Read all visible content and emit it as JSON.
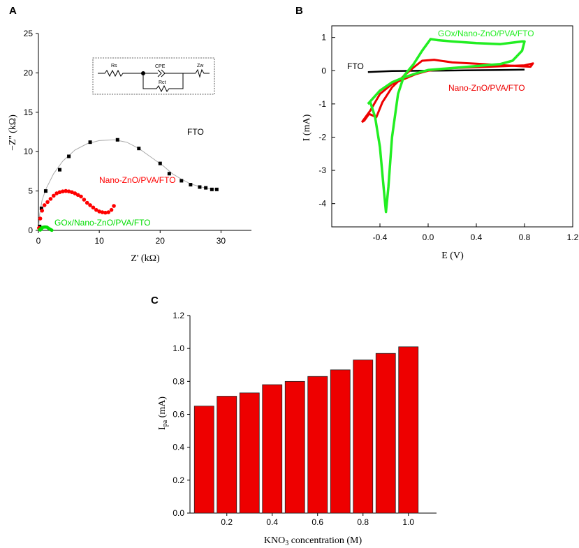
{
  "chart_data": [
    {
      "panel": "A",
      "type": "scatter",
      "xlabel": "Z' (kΩ)",
      "ylabel": "−Z'' (kΩ)",
      "xlim": [
        0,
        35
      ],
      "ylim": [
        0,
        25
      ],
      "xticks": [
        0,
        10,
        20,
        30
      ],
      "yticks": [
        0,
        5,
        10,
        15,
        20,
        25
      ],
      "colors": {
        "fto": "#000000",
        "nano": "#ff0000",
        "gox": "#00dd00",
        "fit": "#aaaaaa"
      },
      "series": [
        {
          "name": "FTO",
          "points": [
            [
              0.2,
              0.5
            ],
            [
              0.5,
              2.8
            ],
            [
              1.2,
              5.0
            ],
            [
              3.5,
              7.7
            ],
            [
              5.0,
              9.4
            ],
            [
              8.5,
              11.2
            ],
            [
              13.0,
              11.5
            ],
            [
              16.5,
              10.4
            ],
            [
              20.0,
              8.5
            ],
            [
              21.5,
              7.2
            ],
            [
              23.5,
              6.3
            ],
            [
              25.0,
              5.8
            ],
            [
              26.5,
              5.5
            ],
            [
              27.5,
              5.4
            ],
            [
              28.5,
              5.2
            ],
            [
              29.3,
              5.2
            ]
          ]
        },
        {
          "name": "Nano-ZnO/PVA/FTO",
          "points": [
            [
              0.1,
              0.3
            ],
            [
              0.3,
              1.5
            ],
            [
              0.6,
              2.5
            ],
            [
              1.0,
              3.2
            ],
            [
              1.5,
              3.6
            ],
            [
              2.0,
              4.0
            ],
            [
              2.5,
              4.4
            ],
            [
              3.0,
              4.7
            ],
            [
              3.5,
              4.85
            ],
            [
              4.0,
              4.95
            ],
            [
              4.5,
              5.0
            ],
            [
              5.0,
              4.95
            ],
            [
              5.5,
              4.85
            ],
            [
              6.0,
              4.7
            ],
            [
              6.5,
              4.5
            ],
            [
              7.0,
              4.3
            ],
            [
              7.5,
              3.9
            ],
            [
              8.0,
              3.5
            ],
            [
              8.5,
              3.2
            ],
            [
              9.0,
              2.9
            ],
            [
              9.5,
              2.6
            ],
            [
              10.0,
              2.4
            ],
            [
              10.5,
              2.3
            ],
            [
              11.0,
              2.25
            ],
            [
              11.5,
              2.3
            ],
            [
              12.0,
              2.6
            ],
            [
              12.4,
              3.1
            ]
          ]
        },
        {
          "name": "GOx/Nano-ZnO/PVA/FTO",
          "points": [
            [
              0.2,
              0.1
            ],
            [
              0.4,
              0.25
            ],
            [
              0.6,
              0.35
            ],
            [
              0.8,
              0.4
            ],
            [
              1.0,
              0.42
            ],
            [
              1.2,
              0.42
            ],
            [
              1.4,
              0.4
            ],
            [
              1.6,
              0.3
            ],
            [
              1.8,
              0.2
            ],
            [
              2.0,
              0.1
            ],
            [
              2.2,
              0.02
            ],
            [
              0.3,
              0.05
            ],
            [
              0.5,
              0.15
            ]
          ]
        }
      ],
      "fit_curve": [
        [
          0,
          0
        ],
        [
          0.2,
          2
        ],
        [
          0.6,
          3.8
        ],
        [
          1.2,
          5.2
        ],
        [
          2.5,
          7.2
        ],
        [
          4,
          8.8
        ],
        [
          6,
          10.2
        ],
        [
          8,
          11.0
        ],
        [
          10,
          11.4
        ],
        [
          12.5,
          11.5
        ],
        [
          14.5,
          11.2
        ],
        [
          16.5,
          10.4
        ],
        [
          18.5,
          9.3
        ],
        [
          20.5,
          8.2
        ],
        [
          22,
          7.2
        ],
        [
          23.5,
          6.5
        ],
        [
          25,
          5.9
        ],
        [
          26.5,
          5.55
        ],
        [
          28,
          5.3
        ],
        [
          29.5,
          5.2
        ]
      ],
      "labels": {
        "fto": "FTO",
        "nano": "Nano-ZnO/PVA/FTO",
        "gox": "GOx/Nano-ZnO/PVA/FTO"
      },
      "inset": {
        "rs": "Rs",
        "cpe": "CPE",
        "zw": "Zw",
        "rct": "Rct"
      }
    },
    {
      "panel": "B",
      "type": "line",
      "xlabel": "E (V)",
      "ylabel": "I (mA)",
      "xlim": [
        -0.8,
        1.2
      ],
      "ylim": [
        -4.7,
        1.35
      ],
      "xticks": [
        -0.4,
        0.0,
        0.4,
        0.8,
        1.2
      ],
      "yticks": [
        -4,
        -3,
        -2,
        -1,
        0,
        1
      ],
      "colors": {
        "fto": "#000000",
        "nano": "#ee0000",
        "gox": "#22ee22"
      },
      "series": [
        {
          "name": "FTO",
          "points": [
            [
              -0.5,
              -0.04
            ],
            [
              -0.3,
              -0.01
            ],
            [
              0.0,
              0.0
            ],
            [
              0.3,
              0.01
            ],
            [
              0.6,
              0.02
            ],
            [
              0.8,
              0.03
            ]
          ]
        },
        {
          "name": "Nano-ZnO/PVA/FTO",
          "points": [
            [
              -0.55,
              -1.55
            ],
            [
              -0.48,
              -1.2
            ],
            [
              -0.4,
              -0.7
            ],
            [
              -0.3,
              -0.4
            ],
            [
              -0.2,
              -0.25
            ],
            [
              -0.1,
              -0.1
            ],
            [
              0.0,
              0.0
            ],
            [
              0.2,
              0.08
            ],
            [
              0.5,
              0.12
            ],
            [
              0.8,
              0.16
            ],
            [
              0.87,
              0.22
            ],
            [
              0.85,
              0.12
            ],
            [
              0.6,
              0.17
            ],
            [
              0.4,
              0.21
            ],
            [
              0.2,
              0.25
            ],
            [
              0.05,
              0.33
            ],
            [
              -0.05,
              0.3
            ],
            [
              -0.12,
              0.1
            ],
            [
              -0.2,
              -0.15
            ],
            [
              -0.3,
              -0.5
            ],
            [
              -0.38,
              -0.95
            ],
            [
              -0.43,
              -1.4
            ],
            [
              -0.49,
              -1.3
            ],
            [
              -0.53,
              -1.5
            ],
            [
              -0.55,
              -1.55
            ]
          ]
        },
        {
          "name": "GOx/Nano-ZnO/PVA/FTO",
          "points": [
            [
              -0.5,
              -1.0
            ],
            [
              -0.4,
              -0.6
            ],
            [
              -0.3,
              -0.35
            ],
            [
              -0.2,
              -0.2
            ],
            [
              -0.1,
              -0.08
            ],
            [
              0.0,
              0.02
            ],
            [
              0.2,
              0.08
            ],
            [
              0.4,
              0.14
            ],
            [
              0.6,
              0.2
            ],
            [
              0.7,
              0.3
            ],
            [
              0.78,
              0.6
            ],
            [
              0.8,
              0.88
            ],
            [
              0.78,
              0.88
            ],
            [
              0.6,
              0.8
            ],
            [
              0.4,
              0.83
            ],
            [
              0.2,
              0.88
            ],
            [
              0.08,
              0.92
            ],
            [
              0.02,
              0.95
            ],
            [
              -0.05,
              0.6
            ],
            [
              -0.12,
              0.2
            ],
            [
              -0.2,
              -0.15
            ],
            [
              -0.25,
              -0.7
            ],
            [
              -0.3,
              -2.0
            ],
            [
              -0.33,
              -3.5
            ],
            [
              -0.35,
              -4.25
            ],
            [
              -0.37,
              -3.5
            ],
            [
              -0.4,
              -2.3
            ],
            [
              -0.44,
              -1.4
            ],
            [
              -0.48,
              -0.95
            ],
            [
              -0.5,
              -1.0
            ]
          ]
        }
      ],
      "labels": {
        "fto": "FTO",
        "nano": "Nano-ZnO/PVA/FTO",
        "gox": "GOx/Nano-ZnO/PVA/FTO"
      }
    },
    {
      "panel": "C",
      "type": "bar",
      "xlabel": "KNO3 concentration (M)",
      "ylabel": "Ipa (mA)",
      "categories": [
        "0.1",
        "0.2",
        "0.3",
        "0.4",
        "0.5",
        "0.6",
        "0.7",
        "0.8",
        "0.9",
        "1.0"
      ],
      "values": [
        0.65,
        0.71,
        0.73,
        0.78,
        0.8,
        0.83,
        0.87,
        0.93,
        0.97,
        1.01
      ],
      "xticks": [
        "0.2",
        "0.4",
        "0.6",
        "0.8",
        "1.0"
      ],
      "yticks": [
        "0.0",
        "0.2",
        "0.4",
        "0.6",
        "0.8",
        "1.0",
        "1.2"
      ],
      "ylim": [
        0,
        1.2
      ],
      "bar_color": "#ee0000"
    }
  ],
  "panel_letters": {
    "a": "A",
    "b": "B",
    "c": "C"
  }
}
